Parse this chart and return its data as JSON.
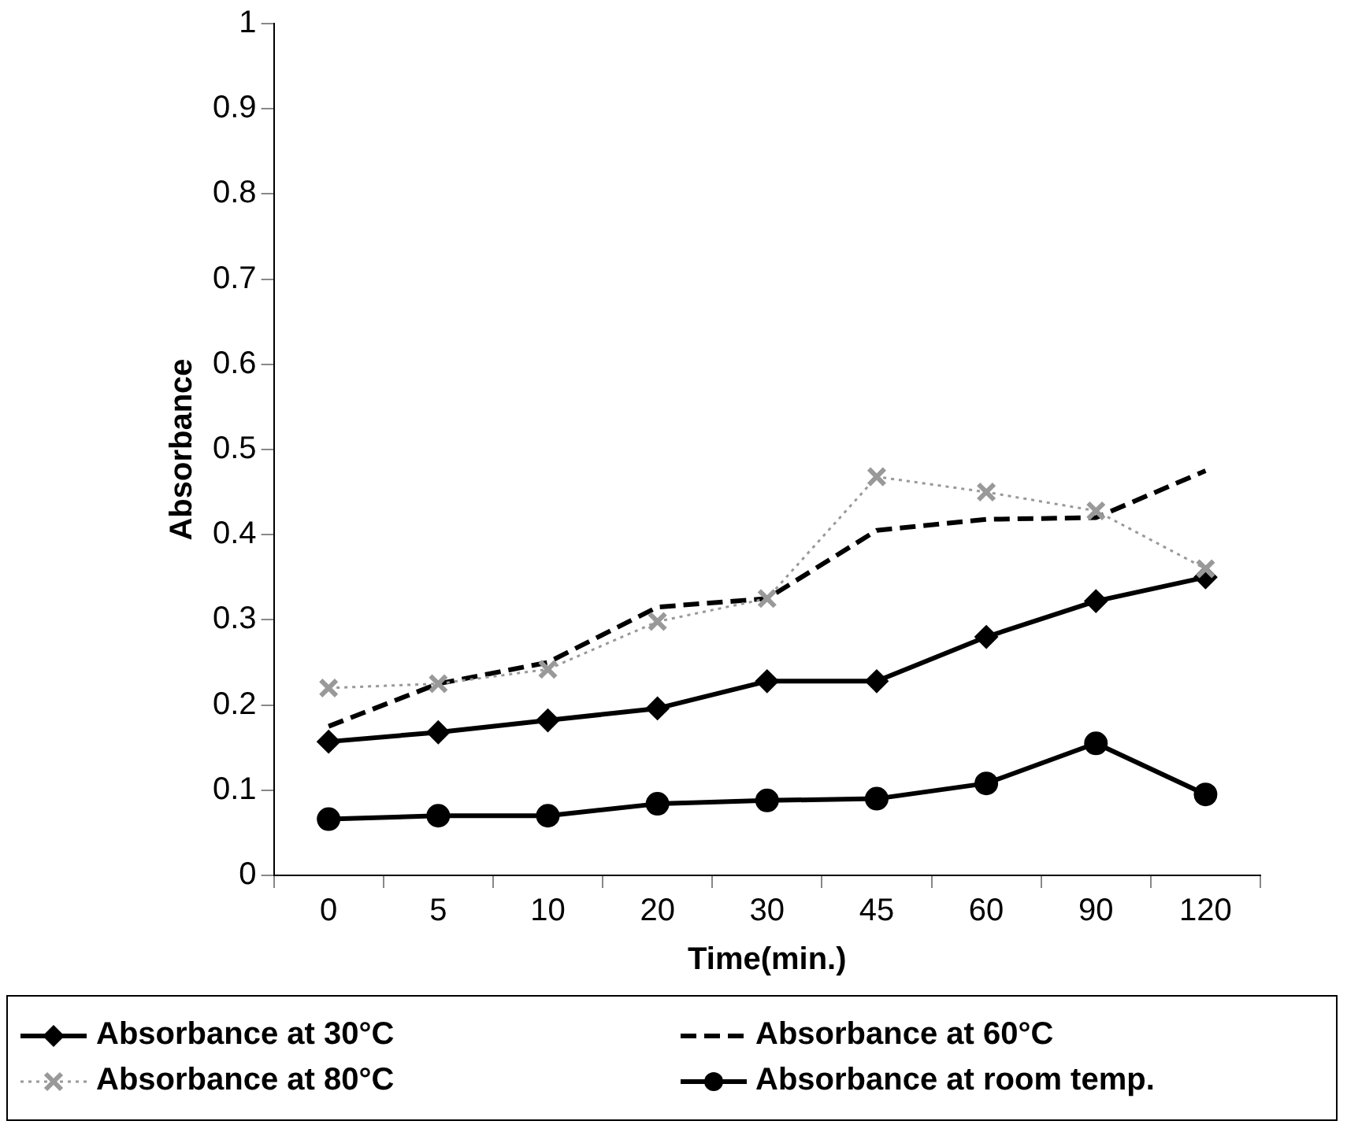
{
  "chart_data": {
    "type": "line",
    "xlabel": "Time(min.)",
    "ylabel": "Absorbance",
    "categories": [
      "0",
      "5",
      "10",
      "20",
      "30",
      "45",
      "60",
      "90",
      "120"
    ],
    "series": [
      {
        "name": "Absorbance at 30°C",
        "color": "#000000",
        "marker": "diamond",
        "line_style": "solid",
        "values": [
          0.157,
          0.168,
          0.182,
          0.196,
          0.228,
          0.228,
          0.28,
          0.322,
          0.35
        ]
      },
      {
        "name": "Absorbance at 60°C",
        "color": "#000000",
        "marker": "none",
        "line_style": "dashed",
        "values": [
          0.175,
          0.225,
          0.25,
          0.315,
          0.325,
          0.405,
          0.418,
          0.42,
          0.475
        ]
      },
      {
        "name": "Absorbance at 80°C",
        "color": "#999999",
        "marker": "cross",
        "line_style": "dotted",
        "values": [
          0.22,
          0.225,
          0.242,
          0.298,
          0.325,
          0.468,
          0.45,
          0.428,
          0.36
        ]
      },
      {
        "name": "Absorbance at room temp.",
        "color": "#000000",
        "marker": "circle",
        "line_style": "solid",
        "values": [
          0.066,
          0.07,
          0.07,
          0.084,
          0.088,
          0.09,
          0.108,
          0.155,
          0.095
        ]
      }
    ],
    "ylim": [
      0,
      1
    ],
    "yticks": [
      0,
      0.1,
      0.2,
      0.3,
      0.4,
      0.5,
      0.6,
      0.7,
      0.8,
      0.9,
      1
    ],
    "grid": false,
    "legend": "bottom"
  }
}
